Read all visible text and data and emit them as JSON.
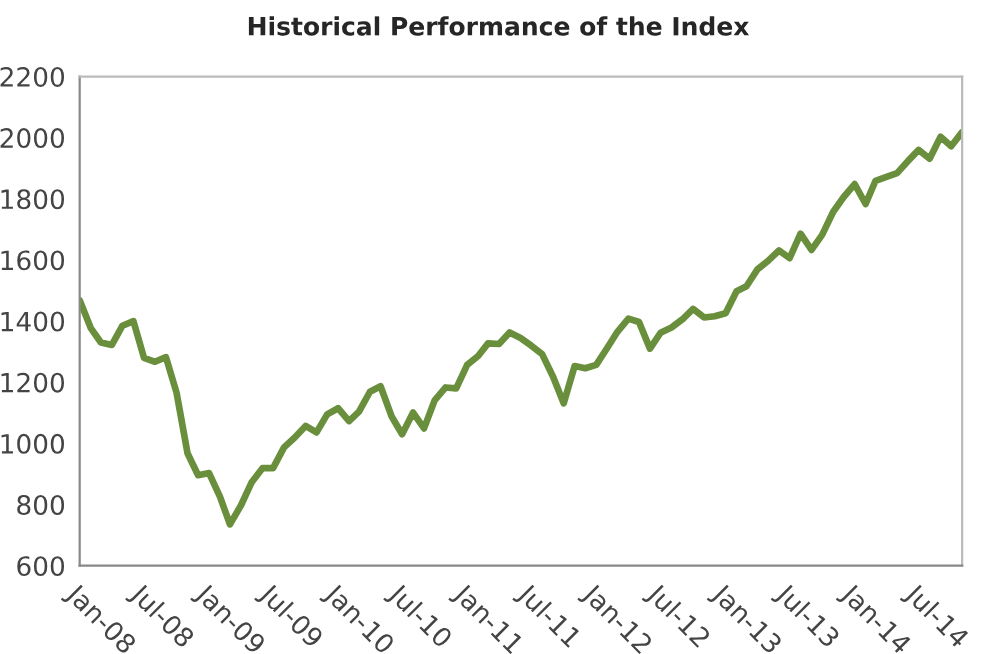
{
  "chart_data": {
    "type": "line",
    "title": "Historical Performance of the Index",
    "x": [
      "2008-01",
      "2008-02",
      "2008-03",
      "2008-04",
      "2008-05",
      "2008-06",
      "2008-07",
      "2008-08",
      "2008-09",
      "2008-10",
      "2008-11",
      "2008-12",
      "2009-01",
      "2009-02",
      "2009-03",
      "2009-04",
      "2009-05",
      "2009-06",
      "2009-07",
      "2009-08",
      "2009-09",
      "2009-10",
      "2009-11",
      "2009-12",
      "2010-01",
      "2010-02",
      "2010-03",
      "2010-04",
      "2010-05",
      "2010-06",
      "2010-07",
      "2010-08",
      "2010-09",
      "2010-10",
      "2010-11",
      "2010-12",
      "2011-01",
      "2011-02",
      "2011-03",
      "2011-04",
      "2011-05",
      "2011-06",
      "2011-07",
      "2011-08",
      "2011-09",
      "2011-10",
      "2011-11",
      "2011-12",
      "2012-01",
      "2012-02",
      "2012-03",
      "2012-04",
      "2012-05",
      "2012-06",
      "2012-07",
      "2012-08",
      "2012-09",
      "2012-10",
      "2012-11",
      "2012-12",
      "2013-01",
      "2013-02",
      "2013-03",
      "2013-04",
      "2013-05",
      "2013-06",
      "2013-07",
      "2013-08",
      "2013-09",
      "2013-10",
      "2013-11",
      "2013-12",
      "2014-01",
      "2014-02",
      "2014-03",
      "2014-04",
      "2014-05",
      "2014-06",
      "2014-07",
      "2014-08",
      "2014-09",
      "2014-10",
      "2014-11"
    ],
    "series": [
      {
        "color": "#6a8f3c",
        "values": [
          1468,
          1378,
          1330,
          1322,
          1385,
          1400,
          1280,
          1267,
          1282,
          1166,
          968,
          896,
          903,
          825,
          735,
          797,
          872,
          919,
          919,
          987,
          1020,
          1057,
          1036,
          1095,
          1115,
          1073,
          1104,
          1169,
          1187,
          1089,
          1030,
          1101,
          1049,
          1141,
          1183,
          1180,
          1257,
          1286,
          1327,
          1325,
          1363,
          1345,
          1320,
          1292,
          1218,
          1131,
          1253,
          1246,
          1257,
          1312,
          1365,
          1408,
          1397,
          1310,
          1362,
          1379,
          1406,
          1440,
          1412,
          1416,
          1426,
          1498,
          1514,
          1569,
          1597,
          1631,
          1606,
          1686,
          1633,
          1682,
          1757,
          1806,
          1848,
          1783,
          1859,
          1872,
          1884,
          1924,
          1960,
          1931,
          2003,
          1972,
          2018
        ]
      }
    ],
    "xlim": [
      "2008-01",
      "2014-11"
    ],
    "xticks": [
      {
        "value": "2008-01",
        "label": "Jan-08"
      },
      {
        "value": "2008-07",
        "label": "Jul-08"
      },
      {
        "value": "2009-01",
        "label": "Jan-09"
      },
      {
        "value": "2009-07",
        "label": "Jul-09"
      },
      {
        "value": "2010-01",
        "label": "Jan-10"
      },
      {
        "value": "2010-07",
        "label": "Jul-10"
      },
      {
        "value": "2011-01",
        "label": "Jan-11"
      },
      {
        "value": "2011-07",
        "label": "Jul-11"
      },
      {
        "value": "2012-01",
        "label": "Jan-12"
      },
      {
        "value": "2012-07",
        "label": "Jul-12"
      },
      {
        "value": "2013-01",
        "label": "Jan-13"
      },
      {
        "value": "2013-07",
        "label": "Jul-13"
      },
      {
        "value": "2014-01",
        "label": "Jan-14"
      },
      {
        "value": "2014-07",
        "label": "Jul-14"
      }
    ],
    "ylim": [
      600,
      2200
    ],
    "yticks": [
      600,
      800,
      1000,
      1200,
      1400,
      1600,
      1800,
      2000,
      2200
    ],
    "grid": false,
    "legend": false,
    "marker": "none",
    "line_style": "solid"
  }
}
